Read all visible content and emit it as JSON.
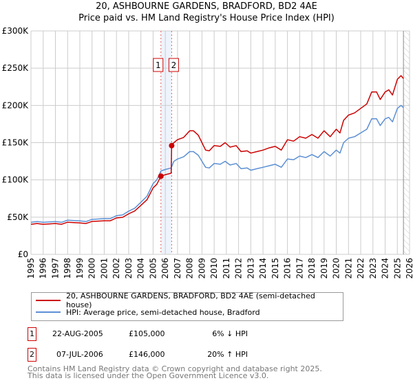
{
  "title_line1": "20, ASHBOURNE GARDENS, BRADFORD, BD2 4AE",
  "title_line2": "Price paid vs. HM Land Registry's House Price Index (HPI)",
  "chart_data": {
    "type": "line",
    "title": "20, ASHBOURNE GARDENS, BRADFORD, BD2 4AE — Price paid vs. HM Land Registry's House Price Index (HPI)",
    "xlim": [
      1995,
      2026
    ],
    "ylim": [
      0,
      300000
    ],
    "x_ticks": [
      "1995",
      "1996",
      "1997",
      "1998",
      "1999",
      "2000",
      "2001",
      "2002",
      "2003",
      "2004",
      "2005",
      "2006",
      "2007",
      "2008",
      "2009",
      "2010",
      "2011",
      "2012",
      "2013",
      "2014",
      "2015",
      "2016",
      "2017",
      "2018",
      "2019",
      "2020",
      "2021",
      "2022",
      "2023",
      "2024",
      "2025",
      "2026"
    ],
    "y_ticks": [
      {
        "v": 0,
        "label": "£0"
      },
      {
        "v": 50000,
        "label": "£50K"
      },
      {
        "v": 100000,
        "label": "£100K"
      },
      {
        "v": 150000,
        "label": "£150K"
      },
      {
        "v": 200000,
        "label": "£200K"
      },
      {
        "v": 250000,
        "label": "£250K"
      },
      {
        "v": 300000,
        "label": "£300K"
      }
    ],
    "grid": true,
    "data_end": 2025.5,
    "colors": {
      "property": "#cc0000",
      "hpi": "#5b8fd4"
    },
    "series": [
      {
        "name": "20, ASHBOURNE GARDENS, BRADFORD, BD2 4AE (semi-detached house)",
        "color": "#cc0000",
        "points": [
          [
            1995,
            40.4
          ],
          [
            1995.5,
            41.4
          ],
          [
            1996,
            40.4
          ],
          [
            1997,
            41.4
          ],
          [
            1997.5,
            40.4
          ],
          [
            1998,
            43.2
          ],
          [
            1999,
            42.3
          ],
          [
            1999.5,
            41.4
          ],
          [
            2000,
            44.2
          ],
          [
            2001,
            45.1
          ],
          [
            2001.5,
            45.1
          ],
          [
            2002,
            48.9
          ],
          [
            2002.5,
            49.8
          ],
          [
            2003,
            54.5
          ],
          [
            2003.5,
            58.3
          ],
          [
            2004,
            65.8
          ],
          [
            2004.5,
            73.3
          ],
          [
            2005,
            89.3
          ],
          [
            2005.3,
            94
          ],
          [
            2005.64,
            105
          ],
          [
            2006,
            107
          ],
          [
            2006.48,
            109
          ],
          [
            2006.52,
            146
          ],
          [
            2006.7,
            150
          ],
          [
            2007,
            154
          ],
          [
            2007.5,
            157
          ],
          [
            2008,
            166
          ],
          [
            2008.3,
            166
          ],
          [
            2008.7,
            160
          ],
          [
            2009,
            150
          ],
          [
            2009.3,
            140
          ],
          [
            2009.6,
            139
          ],
          [
            2010,
            146
          ],
          [
            2010.5,
            145
          ],
          [
            2010.9,
            150
          ],
          [
            2011.3,
            144
          ],
          [
            2011.8,
            146
          ],
          [
            2012.2,
            138
          ],
          [
            2012.7,
            139
          ],
          [
            2013,
            136
          ],
          [
            2013.5,
            138
          ],
          [
            2014,
            140
          ],
          [
            2014.5,
            143
          ],
          [
            2015,
            145
          ],
          [
            2015.5,
            140
          ],
          [
            2016,
            154
          ],
          [
            2016.5,
            152
          ],
          [
            2017,
            158
          ],
          [
            2017.5,
            156
          ],
          [
            2018,
            161
          ],
          [
            2018.5,
            156
          ],
          [
            2019,
            166
          ],
          [
            2019.5,
            158
          ],
          [
            2020,
            168
          ],
          [
            2020.3,
            163
          ],
          [
            2020.6,
            180
          ],
          [
            2021,
            187
          ],
          [
            2021.5,
            190
          ],
          [
            2022,
            196
          ],
          [
            2022.5,
            202
          ],
          [
            2022.9,
            218
          ],
          [
            2023.3,
            218
          ],
          [
            2023.6,
            208
          ],
          [
            2024,
            218
          ],
          [
            2024.3,
            221
          ],
          [
            2024.6,
            214
          ],
          [
            2025,
            235
          ],
          [
            2025.3,
            240
          ],
          [
            2025.5,
            236
          ]
        ]
      },
      {
        "name": "HPI: Average price, semi-detached house, Bradford",
        "color": "#5b8fd4",
        "points": [
          [
            1995,
            43
          ],
          [
            1995.5,
            44
          ],
          [
            1996,
            43
          ],
          [
            1997,
            44
          ],
          [
            1997.5,
            43
          ],
          [
            1998,
            46
          ],
          [
            1999,
            45
          ],
          [
            1999.5,
            44
          ],
          [
            2000,
            47
          ],
          [
            2001,
            48
          ],
          [
            2001.5,
            48
          ],
          [
            2002,
            52
          ],
          [
            2002.5,
            53
          ],
          [
            2003,
            58
          ],
          [
            2003.5,
            62
          ],
          [
            2004,
            70
          ],
          [
            2004.5,
            78
          ],
          [
            2005,
            95
          ],
          [
            2005.3,
            100
          ],
          [
            2005.64,
            112
          ],
          [
            2006,
            114
          ],
          [
            2006.48,
            116
          ],
          [
            2006.7,
            125
          ],
          [
            2007,
            128
          ],
          [
            2007.5,
            131
          ],
          [
            2008,
            138
          ],
          [
            2008.3,
            138
          ],
          [
            2008.7,
            133
          ],
          [
            2009,
            125
          ],
          [
            2009.3,
            117
          ],
          [
            2009.6,
            116
          ],
          [
            2010,
            122
          ],
          [
            2010.5,
            121
          ],
          [
            2010.9,
            125
          ],
          [
            2011.3,
            120
          ],
          [
            2011.8,
            122
          ],
          [
            2012.2,
            115
          ],
          [
            2012.7,
            116
          ],
          [
            2013,
            113
          ],
          [
            2013.5,
            115
          ],
          [
            2014,
            117
          ],
          [
            2014.5,
            119
          ],
          [
            2015,
            121
          ],
          [
            2015.5,
            117
          ],
          [
            2016,
            128
          ],
          [
            2016.5,
            127
          ],
          [
            2017,
            132
          ],
          [
            2017.5,
            130
          ],
          [
            2018,
            134
          ],
          [
            2018.5,
            130
          ],
          [
            2019,
            138
          ],
          [
            2019.5,
            132
          ],
          [
            2020,
            140
          ],
          [
            2020.3,
            136
          ],
          [
            2020.6,
            150
          ],
          [
            2021,
            156
          ],
          [
            2021.5,
            158
          ],
          [
            2022,
            163
          ],
          [
            2022.5,
            168
          ],
          [
            2022.9,
            182
          ],
          [
            2023.3,
            182
          ],
          [
            2023.6,
            173
          ],
          [
            2024,
            182
          ],
          [
            2024.3,
            184
          ],
          [
            2024.6,
            178
          ],
          [
            2025,
            196
          ],
          [
            2025.3,
            200
          ],
          [
            2025.5,
            197
          ]
        ]
      }
    ],
    "point_units": "thousand GBP",
    "sales": [
      {
        "id": "1",
        "x": 2005.64,
        "price": 105000,
        "date": "22-AUG-2005",
        "price_label": "£105,000",
        "hpi_diff": "6% ↓ HPI"
      },
      {
        "id": "2",
        "x": 2006.52,
        "price": 146000,
        "date": "07-JUL-2006",
        "price_label": "£146,000",
        "hpi_diff": "20% ↑ HPI"
      }
    ],
    "legend_placement": "below"
  },
  "legend": {
    "property": "20, ASHBOURNE GARDENS, BRADFORD, BD2 4AE (semi-detached house)",
    "hpi": "HPI: Average price, semi-detached house, Bradford"
  },
  "footer": {
    "line1": "Contains HM Land Registry data © Crown copyright and database right 2025.",
    "line2": "This data is licensed under the Open Government Licence v3.0."
  }
}
